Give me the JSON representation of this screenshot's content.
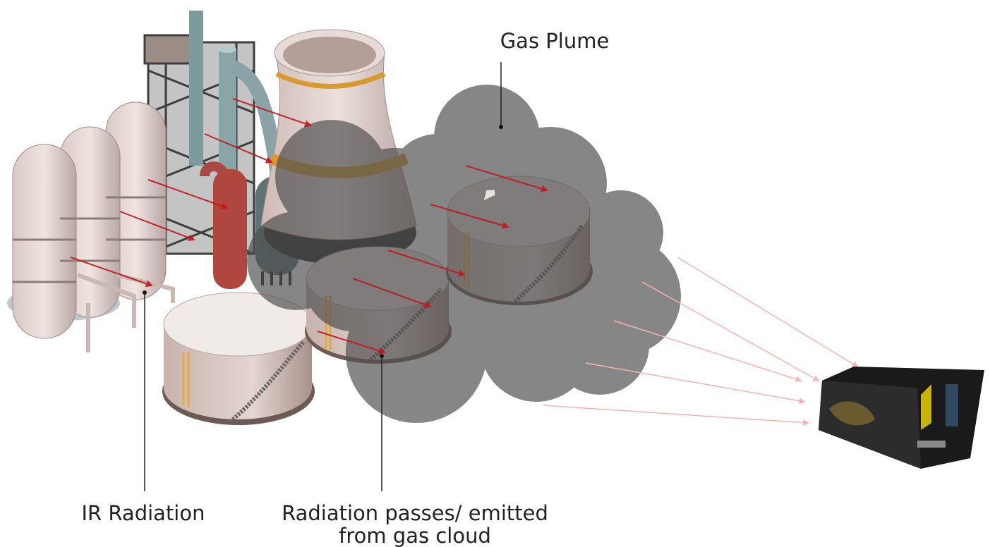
{
  "labels": {
    "gas_plume": "Gas Plume",
    "ir_radiation": "IR Radiation",
    "radiation_passes": [
      "Radiation passes/ emitted",
      "from gas cloud"
    ]
  }
}
